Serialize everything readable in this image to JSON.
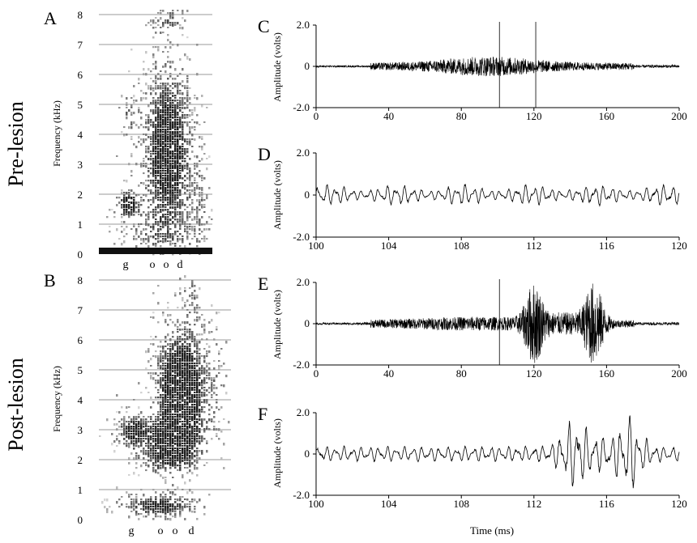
{
  "figure": {
    "row_labels": [
      "Pre-lesion",
      "Post-lesion"
    ]
  },
  "chart_data": [
    {
      "id": "A",
      "panel_label": "A",
      "type": "heatmap",
      "kind": "spectrogram",
      "ylabel": "Frequency (kHz)",
      "yticks": [
        "0",
        "1",
        "2",
        "3",
        "4",
        "5",
        "6",
        "7",
        "8"
      ],
      "ylim": [
        0,
        8
      ],
      "phonemes": [
        "g",
        "o",
        "o",
        "d"
      ],
      "grid": "horizontal at each kHz"
    },
    {
      "id": "B",
      "panel_label": "B",
      "type": "heatmap",
      "kind": "spectrogram",
      "ylabel": "Frequency (kHz)",
      "yticks": [
        "0",
        "1",
        "2",
        "3",
        "4",
        "5",
        "6",
        "7",
        "8"
      ],
      "ylim": [
        0,
        8
      ],
      "phonemes": [
        "g",
        "o",
        "o",
        "d"
      ],
      "grid": "horizontal at each kHz"
    },
    {
      "id": "C",
      "panel_label": "C",
      "type": "line",
      "ylabel": "Amplitude (volts)",
      "yticks": [
        "2.0",
        "0",
        "-2.0"
      ],
      "ylim": [
        -2.0,
        2.0
      ],
      "xticks": [
        "0",
        "40",
        "80",
        "120",
        "160",
        "200"
      ],
      "xlim": [
        0,
        200
      ],
      "markers_ms": [
        101,
        121
      ]
    },
    {
      "id": "D",
      "panel_label": "D",
      "type": "line",
      "ylabel": "Amplitude (volts)",
      "yticks": [
        "2.0",
        "0",
        "-2.0"
      ],
      "ylim": [
        -2.0,
        2.0
      ],
      "xticks": [
        "100",
        "104",
        "108",
        "112",
        "116",
        "120"
      ],
      "xlim": [
        100,
        120
      ]
    },
    {
      "id": "E",
      "panel_label": "E",
      "type": "line",
      "ylabel": "Amplitude (volts)",
      "yticks": [
        "2.0",
        "0",
        "-2.0"
      ],
      "ylim": [
        -2.0,
        2.0
      ],
      "xticks": [
        "0",
        "40",
        "80",
        "120",
        "160",
        "200"
      ],
      "xlim": [
        0,
        200
      ],
      "markers_ms": [
        101
      ]
    },
    {
      "id": "F",
      "panel_label": "F",
      "type": "line",
      "ylabel": "Amplitude (volts)",
      "xlabel": "Time (ms)",
      "yticks": [
        "2.0",
        "0",
        "-2.0"
      ],
      "ylim": [
        -2.0,
        2.0
      ],
      "xticks": [
        "100",
        "104",
        "108",
        "112",
        "116",
        "120"
      ],
      "xlim": [
        100,
        120
      ]
    }
  ]
}
